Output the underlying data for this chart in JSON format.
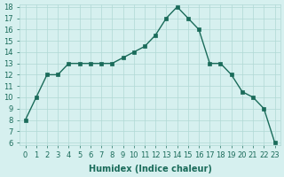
{
  "x": [
    0,
    1,
    2,
    3,
    4,
    5,
    6,
    7,
    8,
    9,
    10,
    11,
    12,
    13,
    14,
    15,
    16,
    17,
    18,
    19,
    20,
    21,
    22,
    23
  ],
  "y": [
    8,
    10,
    12,
    12,
    13,
    13,
    13,
    13,
    13,
    13.5,
    14,
    14.5,
    15.5,
    17,
    18,
    17,
    16,
    13,
    13,
    12,
    10.5,
    10,
    9,
    6
  ],
  "xlabel": "Humidex (Indice chaleur)",
  "ylim": [
    6,
    18
  ],
  "xlim": [
    0,
    23
  ],
  "yticks": [
    6,
    7,
    8,
    9,
    10,
    11,
    12,
    13,
    14,
    15,
    16,
    17,
    18
  ],
  "xticks": [
    0,
    1,
    2,
    3,
    4,
    5,
    6,
    7,
    8,
    9,
    10,
    11,
    12,
    13,
    14,
    15,
    16,
    17,
    18,
    19,
    20,
    21,
    22,
    23
  ],
  "line_color": "#1a6b5a",
  "marker": "s",
  "marker_size": 3,
  "bg_color": "#d6f0ef",
  "grid_color": "#b0d8d5",
  "title_color": "#1a6b5a",
  "label_fontsize": 7,
  "tick_fontsize": 6
}
